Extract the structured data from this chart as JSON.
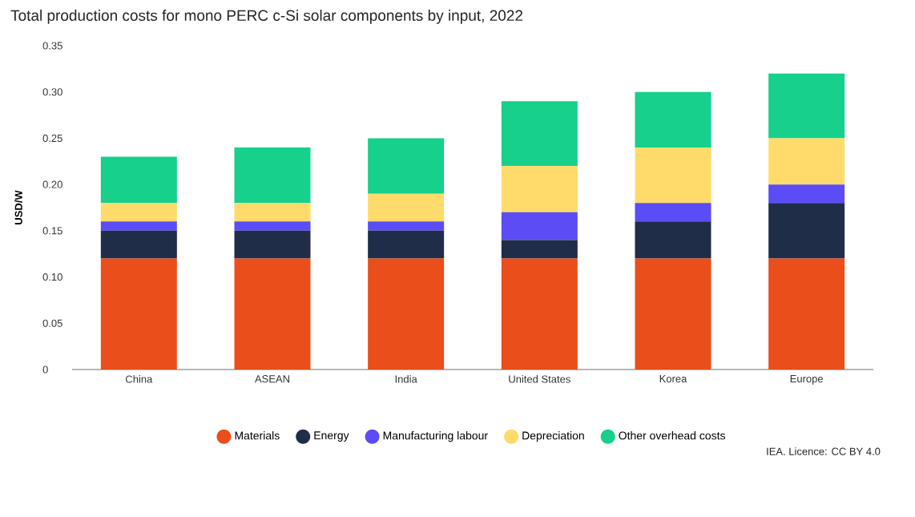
{
  "chart_data": {
    "type": "bar",
    "stacked": true,
    "title": "Total production costs for mono PERC c-Si solar components by input, 2022",
    "ylabel": "USD/W",
    "categories": [
      "China",
      "ASEAN",
      "India",
      "United States",
      "Korea",
      "Europe"
    ],
    "series": [
      {
        "name": "Materials",
        "color": "#e94e1b",
        "values": [
          0.12,
          0.12,
          0.12,
          0.12,
          0.12,
          0.12
        ]
      },
      {
        "name": "Energy",
        "color": "#1f2d48",
        "values": [
          0.03,
          0.03,
          0.03,
          0.02,
          0.04,
          0.06
        ]
      },
      {
        "name": "Manufacturing labour",
        "color": "#5b4cf5",
        "values": [
          0.01,
          0.01,
          0.01,
          0.03,
          0.02,
          0.02
        ]
      },
      {
        "name": "Depreciation",
        "color": "#fedb6b",
        "values": [
          0.02,
          0.02,
          0.03,
          0.05,
          0.06,
          0.05
        ]
      },
      {
        "name": "Other overhead costs",
        "color": "#16d08c",
        "values": [
          0.05,
          0.06,
          0.06,
          0.07,
          0.06,
          0.07
        ]
      }
    ],
    "ylim": [
      0,
      0.35
    ],
    "yticks": [
      {
        "value": 0,
        "label": "0"
      },
      {
        "value": 0.05,
        "label": "0.05"
      },
      {
        "value": 0.1,
        "label": "0.10"
      },
      {
        "value": 0.15,
        "label": "0.15"
      },
      {
        "value": 0.2,
        "label": "0.20"
      },
      {
        "value": 0.25,
        "label": "0.25"
      },
      {
        "value": 0.3,
        "label": "0.30"
      },
      {
        "value": 0.35,
        "label": "0.35"
      }
    ],
    "legend": "bottom",
    "annotations": [
      "IEA. Licence: CC BY 4.0"
    ]
  }
}
